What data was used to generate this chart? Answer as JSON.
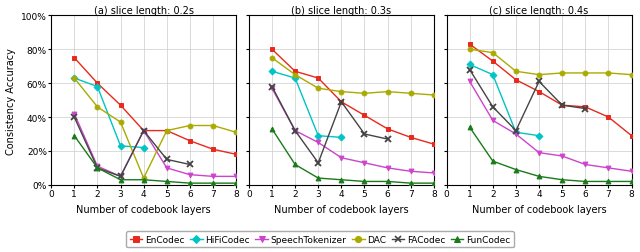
{
  "x": [
    1,
    2,
    3,
    4,
    5,
    6,
    7,
    8
  ],
  "subplot_titles": [
    "(a) slice length: 0.2s",
    "(b) slice length: 0.3s",
    "(c) slice length: 0.4s"
  ],
  "ylabel": "Consistency Accuracy",
  "xlabel": "Number of codebook layers",
  "series": [
    {
      "label": "EnCodec",
      "color": "#e8291c",
      "marker": "s",
      "data": [
        [
          75,
          60,
          47,
          32,
          32,
          26,
          21,
          18
        ],
        [
          80,
          67,
          63,
          49,
          41,
          33,
          28,
          24
        ],
        [
          83,
          73,
          62,
          55,
          47,
          46,
          40,
          29
        ]
      ]
    },
    {
      "label": "HiFiCodec",
      "color": "#00c4c4",
      "marker": "D",
      "data": [
        [
          63,
          58,
          23,
          22,
          null,
          null,
          null,
          null
        ],
        [
          67,
          63,
          29,
          28,
          null,
          null,
          null,
          null
        ],
        [
          71,
          65,
          31,
          29,
          null,
          null,
          null,
          null
        ]
      ]
    },
    {
      "label": "SpeechTokenizer",
      "color": "#cc44cc",
      "marker": "v",
      "data": [
        [
          42,
          11,
          5,
          32,
          10,
          6,
          5,
          5
        ],
        [
          57,
          32,
          25,
          16,
          13,
          10,
          8,
          7
        ],
        [
          61,
          38,
          30,
          19,
          17,
          12,
          10,
          8
        ]
      ]
    },
    {
      "label": "DAC",
      "color": "#aaaa00",
      "marker": "o",
      "data": [
        [
          63,
          46,
          37,
          4,
          32,
          35,
          35,
          31
        ],
        [
          75,
          65,
          57,
          55,
          54,
          55,
          54,
          53
        ],
        [
          80,
          78,
          67,
          65,
          66,
          66,
          66,
          65
        ]
      ]
    },
    {
      "label": "FACodec",
      "color": "#444444",
      "marker": "x",
      "data": [
        [
          40,
          10,
          5,
          32,
          15,
          12,
          null,
          null
        ],
        [
          58,
          32,
          13,
          49,
          30,
          27,
          null,
          null
        ],
        [
          68,
          46,
          32,
          61,
          47,
          45,
          null,
          null
        ]
      ]
    },
    {
      "label": "FunCodec",
      "color": "#1a7a1a",
      "marker": "^",
      "data": [
        [
          29,
          10,
          3,
          3,
          2,
          1,
          1,
          1
        ],
        [
          33,
          12,
          4,
          3,
          2,
          2,
          1,
          1
        ],
        [
          34,
          14,
          9,
          5,
          3,
          2,
          2,
          2
        ]
      ]
    }
  ],
  "ylim": [
    0,
    1.0
  ],
  "yticks": [
    0,
    0.2,
    0.4,
    0.6,
    0.8,
    1.0
  ],
  "yticklabels": [
    "0%",
    "20%",
    "40%",
    "60%",
    "80%",
    "100%"
  ],
  "xticks": [
    0,
    1,
    2,
    3,
    4,
    5,
    6,
    7,
    8
  ],
  "legend_labels": [
    "EnCodec",
    "HiFiCodec",
    "SpeechTokenizer",
    "DAC",
    "FACodec",
    "FunCodec"
  ],
  "legend_markers": [
    "s",
    "D",
    "v",
    "o",
    "x",
    "^"
  ],
  "legend_colors": [
    "#e8291c",
    "#00c4c4",
    "#cc44cc",
    "#aaaa00",
    "#444444",
    "#1a7a1a"
  ]
}
